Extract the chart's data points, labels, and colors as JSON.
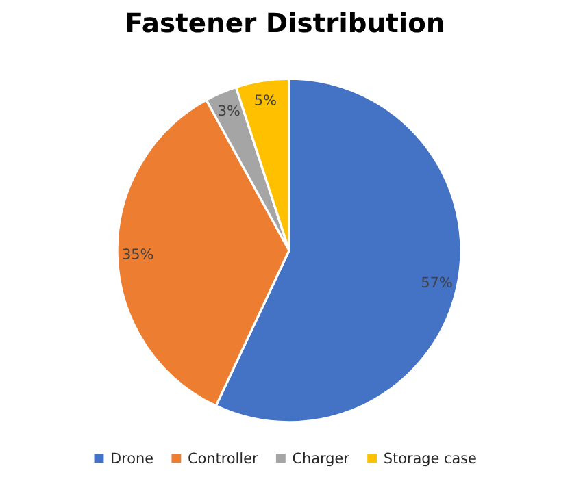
{
  "chart_data": {
    "type": "pie",
    "title": "Fastener Distribution",
    "categories": [
      "Drone",
      "Controller",
      "Charger",
      "Storage case"
    ],
    "values": [
      57,
      35,
      3,
      5
    ],
    "colors": [
      "#4472c4",
      "#ed7d31",
      "#a5a5a5",
      "#ffc000"
    ],
    "value_labels": [
      "57%",
      "35%",
      "3%",
      "5%"
    ],
    "legend": "bottom"
  }
}
